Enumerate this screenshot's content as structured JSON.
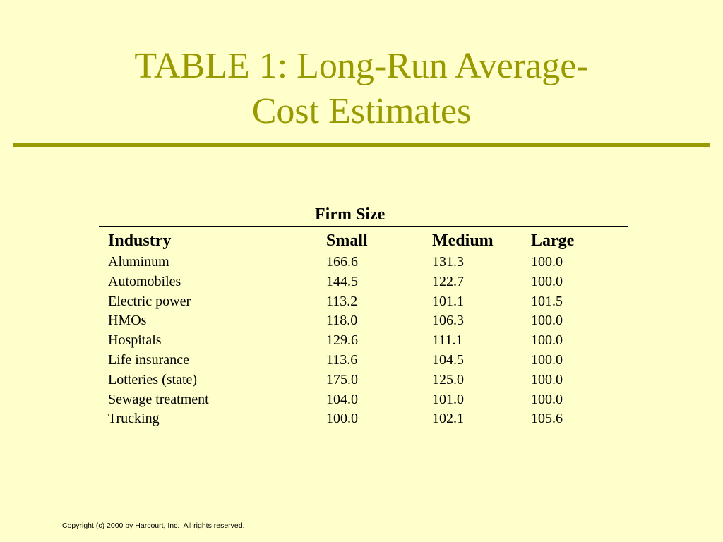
{
  "title": {
    "line1": "TABLE 1: Long-Run Average-",
    "line2": "Cost Estimates"
  },
  "table": {
    "group_header": "Firm Size",
    "columns": [
      "Industry",
      "Small",
      "Medium",
      "Large"
    ],
    "rows": [
      [
        "Aluminum",
        "166.6",
        "131.3",
        "100.0"
      ],
      [
        "Automobiles",
        "144.5",
        "122.7",
        "100.0"
      ],
      [
        "Electric power",
        "113.2",
        "101.1",
        "101.5"
      ],
      [
        "HMOs",
        "118.0",
        "106.3",
        "100.0"
      ],
      [
        "Hospitals",
        "129.6",
        "111.1",
        "100.0"
      ],
      [
        "Life insurance",
        "113.6",
        "104.5",
        "100.0"
      ],
      [
        "Lotteries (state)",
        "175.0",
        "125.0",
        "100.0"
      ],
      [
        "Sewage treatment",
        "104.0",
        "101.0",
        "100.0"
      ],
      [
        "Trucking",
        "100.0",
        "102.1",
        "105.6"
      ]
    ]
  },
  "footer": {
    "copyright": "Copyright (c) 2000 by Harcourt, Inc.  All rights reserved."
  },
  "colors": {
    "background": "#ffffcc",
    "accent": "#999900"
  }
}
